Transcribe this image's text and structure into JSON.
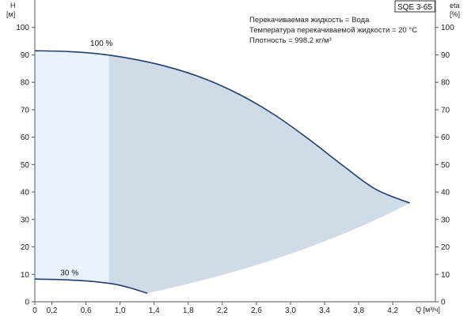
{
  "chart_data": {
    "type": "area",
    "badge": "SQE 3-65",
    "y_left_label": [
      "H",
      "[м]"
    ],
    "y_right_label": [
      "eta",
      "[%]"
    ],
    "x_label": "Q [м³/ч]",
    "info_lines": [
      "Перекачиваемая жидкость = Вода",
      "Температура перекачиваемой жидкости = 20 °C",
      "Плотность = 998.2 кг/м³"
    ],
    "xlim": [
      0,
      4.7
    ],
    "ylim": [
      0,
      110
    ],
    "x_ticks": [
      0,
      0.2,
      0.6,
      1.0,
      1.4,
      1.8,
      2.2,
      2.6,
      3.0,
      3.4,
      3.8,
      4.2
    ],
    "x_tick_labels": [
      "0",
      "0,2",
      "0,6",
      "1,0",
      "1,4",
      "1,8",
      "2,2",
      "2,6",
      "3,0",
      "3,4",
      "3,8",
      "4,2"
    ],
    "y_ticks": [
      0,
      10,
      20,
      30,
      40,
      50,
      60,
      70,
      80,
      90,
      100
    ],
    "grid": false,
    "colors": {
      "curve": "#1f3f6e",
      "area_main": "#cfdbe6",
      "area_light": "#eaf2fb",
      "axis": "#555555"
    },
    "curves": [
      {
        "label": "100 %",
        "x": [
          0,
          0.4,
          0.8,
          1.2,
          1.6,
          2.0,
          2.4,
          2.8,
          3.2,
          3.6,
          4.0,
          4.4
        ],
        "y": [
          91.5,
          91.2,
          90.2,
          88.2,
          85.3,
          81.2,
          75.6,
          68.4,
          59.6,
          50.0,
          41.0,
          36.0
        ]
      },
      {
        "label": "30 %",
        "x": [
          0,
          0.3,
          0.6,
          0.9,
          1.1,
          1.32
        ],
        "y": [
          8.3,
          8.1,
          7.6,
          6.6,
          5.2,
          3.1
        ]
      }
    ],
    "light_region_x": [
      0,
      0.87
    ]
  }
}
